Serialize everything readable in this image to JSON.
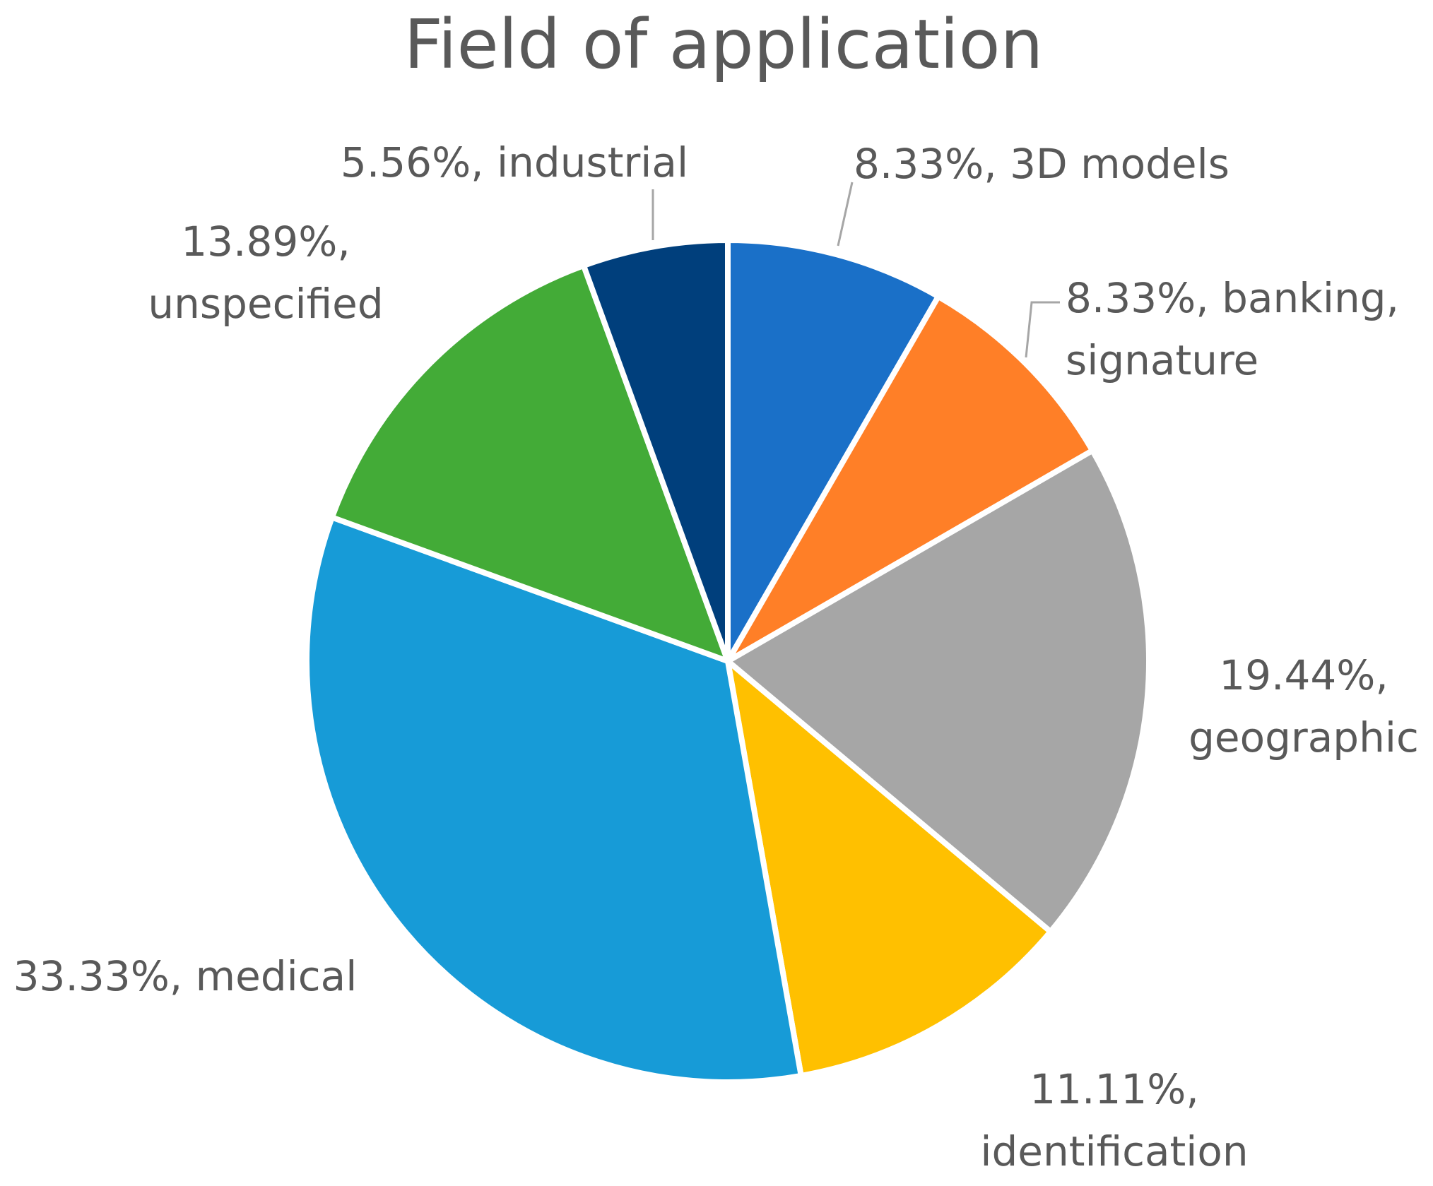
{
  "chart_data": {
    "type": "pie",
    "title": "Field of application",
    "slices": [
      {
        "value": 8.33,
        "percent_label": "8.33%",
        "category": "3D models",
        "color": "#1a70c8"
      },
      {
        "value": 8.33,
        "percent_label": "8.33%",
        "category": "banking, signature",
        "color": "#ff7f27"
      },
      {
        "value": 19.44,
        "percent_label": "19.44%",
        "category": "geographic",
        "color": "#a6a6a6"
      },
      {
        "value": 11.11,
        "percent_label": "11.11%",
        "category": "identification",
        "color": "#ffc000"
      },
      {
        "value": 33.33,
        "percent_label": "33.33%",
        "category": "medical",
        "color": "#179bd7"
      },
      {
        "value": 13.89,
        "percent_label": "13.89%",
        "category": "unspecified",
        "color": "#43ab37"
      },
      {
        "value": 5.56,
        "percent_label": "5.56%",
        "category": "industrial",
        "color": "#003f7c"
      }
    ],
    "data_labels": [
      {
        "lines": [
          "8.33%, 3D models"
        ]
      },
      {
        "lines": [
          "8.33%, banking,",
          "signature"
        ]
      },
      {
        "lines": [
          "19.44%,",
          "geographic"
        ]
      },
      {
        "lines": [
          "11.11%,",
          "identification"
        ]
      },
      {
        "lines": [
          "33.33%, medical"
        ]
      },
      {
        "lines": [
          "13.89%,",
          "unspecified"
        ]
      },
      {
        "lines": [
          "5.56%, industrial"
        ]
      }
    ],
    "legend": "none"
  }
}
